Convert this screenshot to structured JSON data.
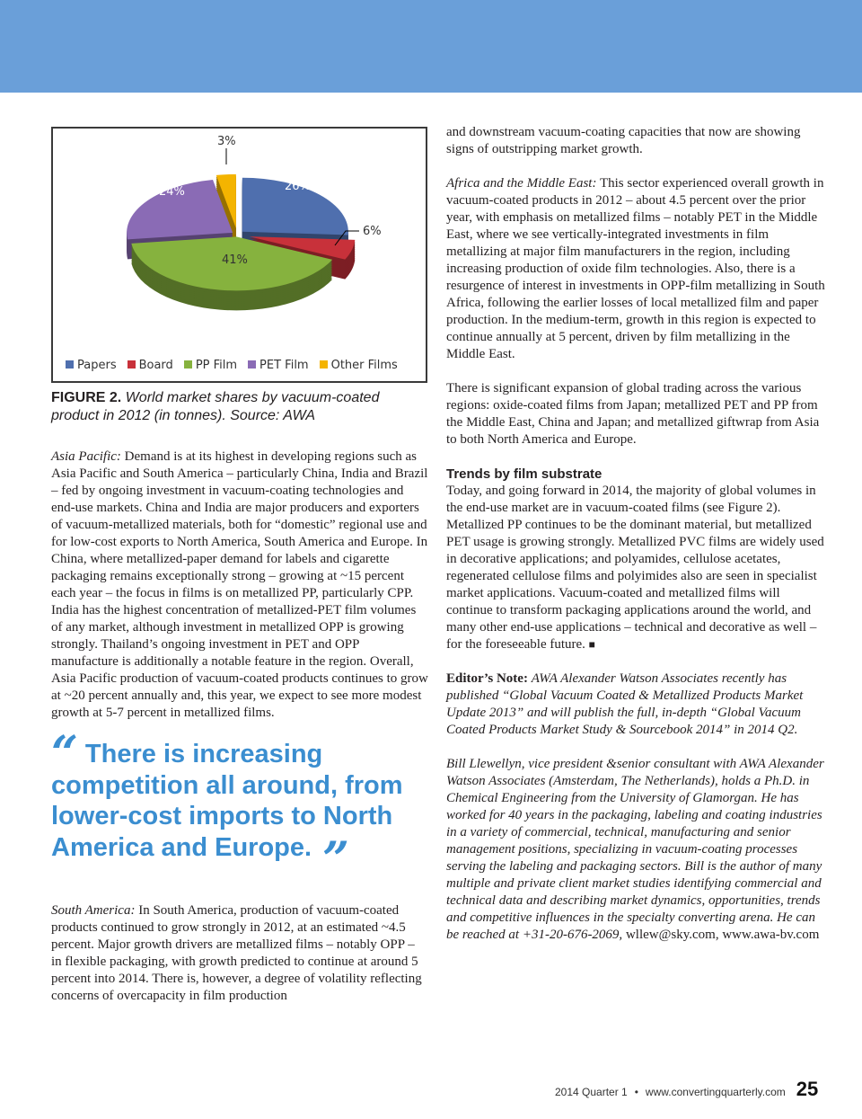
{
  "colors": {
    "banner": "#6a9fd9",
    "accent": "#3b8ed0"
  },
  "chart_data": {
    "type": "pie",
    "style": "3d-exploded",
    "categories": [
      "Papers",
      "Board",
      "PP Film",
      "PET Film",
      "Other Films"
    ],
    "values": [
      26,
      6,
      41,
      24,
      3
    ],
    "labels": [
      "26%",
      "6%",
      "41%",
      "24%",
      "3%"
    ],
    "colors": [
      "#4f6fae",
      "#c8313a",
      "#86b23e",
      "#8a6bb5",
      "#f4b400"
    ],
    "legend_position": "bottom"
  },
  "caption": {
    "label": "FIGURE 2.",
    "text": "World market shares by vacuum-coated product in 2012 (in tonnes). Source: AWA"
  },
  "left": {
    "asia_lead": "Asia Pacific:",
    "asia": "Demand is at its highest in developing regions such as Asia Pacific and South America – particularly China, India and Brazil – fed by ongoing investment in vacuum-coating technologies and end-use markets. China and India are major producers and exporters of vacuum-metallized materials, both for “domestic” regional use and for low-cost exports to North America, South America and Europe. In China, where metallized-paper demand for labels and cigarette packaging remains exceptionally strong – growing at ~15 percent each year – the focus in films is on metallized PP, particularly CPP. India has the highest concentration of metallized-PET film volumes of any market, although investment in metallized OPP is growing strongly. Thailand’s ongoing investment in PET and OPP manufacture is additionally a notable feature in the region. Overall, Asia Pacific production of vacuum-coated products continues to grow at ~20 percent annually and, this year, we expect to see more modest growth at 5-7 percent in metallized films.",
    "quote": "There is increasing competition all around, from lower-cost imports to North America and Europe.",
    "sa_lead": "South America:",
    "sa": "In South America, production of vacuum-coated products continued to grow strongly in 2012, at an estimated ~4.5 percent. Major growth drivers are metallized films – notably OPP – in flexible packaging, with growth predicted to continue at around 5 percent into 2014. There is, however, a degree of volatility reflecting concerns of overcapacity in film production"
  },
  "right": {
    "p1": "and downstream vacuum-coating capacities that now are showing signs of outstripping market growth.",
    "africa_lead": "Africa and the Middle East:",
    "africa": "This sector experienced overall growth in vacuum-coated products in 2012 – about 4.5 percent over the prior year, with emphasis on metallized films – notably PET in the Middle East, where we see vertically-integrated investments in film metallizing at major film manufacturers in the region, including increasing production of oxide film technologies. Also, there is a resurgence of interest in investments in OPP-film metallizing in South Africa, following the earlier losses of local metallized film and paper production. In the medium-term, growth in this region is expected to continue annually at 5 percent, driven by film metallizing in the Middle East.",
    "trade": "There is significant expansion of global trading across the various regions: oxide-coated films from Japan; metallized PET and PP from the Middle East, China and Japan; and metallized giftwrap from Asia to both North America and Europe.",
    "trends_heading": "Trends by film substrate",
    "trends": "Today, and going forward in 2014, the majority of global volumes in the end-use market are in vacuum-coated films (see Figure 2). Metallized PP continues to be the dominant material, but metallized PET usage is growing strongly. Metallized PVC films are widely used in decorative applications; and polyamides, cellulose acetates, regenerated cellulose films and polyimides also are seen in specialist market applications. Vacuum-coated and metallized films will continue to transform packaging applications around the world, and many other end-use applications – technical and decorative as well – for the foreseeable future.",
    "end_mark": "■",
    "editor_lead": "Editor’s Note:",
    "editor": "AWA Alexander Watson Associates recently has published “Global Vacuum Coated & Metallized Products Market Update 2013” and will publish the full, in-depth “Global Vacuum Coated Products Market Study & Sourcebook 2014” in 2014 Q2.",
    "bio": "Bill Llewellyn, vice president &senior consultant with AWA Alexander Watson Associates (Amsterdam, The Netherlands), holds a Ph.D. in Chemical Engineering from the University of Glamorgan. He has worked for 40 years in the packaging, labeling and coating industries in a variety of commercial, technical, manufacturing and senior management positions, specializing in vacuum-coating processes serving the labeling and packaging sectors. Bill is the author of many multiple and private client market studies identifying commercial and technical data and describing market dynamics, opportunities, trends and competitive influences in the specialty converting arena. He can be reached at +31-20-676-2069,",
    "contact": "wllew@sky.com, www.awa-bv.com"
  },
  "footer": {
    "issue": "2014 Quarter 1",
    "bullet": "•",
    "url": "www.convertingquarterly.com",
    "page": "25"
  }
}
